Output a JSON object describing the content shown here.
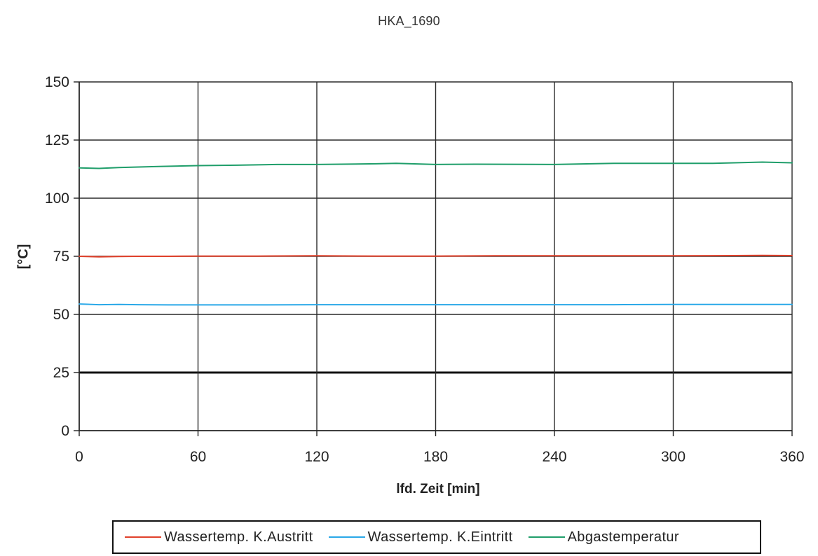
{
  "chart_data": {
    "type": "line",
    "title": "HKA_1690",
    "xlabel": "lfd. Zeit [min]",
    "ylabel": "[°C]",
    "xlim": [
      0,
      360
    ],
    "ylim": [
      0,
      150
    ],
    "x_ticks": [
      0,
      60,
      120,
      180,
      240,
      300,
      360
    ],
    "y_ticks": [
      0,
      25,
      50,
      75,
      100,
      125,
      150
    ],
    "grid": true,
    "legend": "bottom",
    "series": [
      {
        "name": "Wassertemp. K.Austritt",
        "color": "#e0402a",
        "x": [
          0,
          10,
          20,
          30,
          45,
          60,
          90,
          120,
          150,
          180,
          210,
          240,
          270,
          300,
          330,
          345,
          360
        ],
        "y": [
          75.0,
          74.8,
          74.9,
          75.0,
          75.0,
          75.1,
          75.1,
          75.2,
          75.1,
          75.1,
          75.2,
          75.2,
          75.2,
          75.2,
          75.3,
          75.4,
          75.3
        ]
      },
      {
        "name": "Wassertemp. K.Eintritt",
        "color": "#29a8e8",
        "x": [
          0,
          10,
          20,
          30,
          45,
          60,
          90,
          120,
          150,
          180,
          210,
          240,
          270,
          300,
          330,
          360
        ],
        "y": [
          54.5,
          54.2,
          54.3,
          54.2,
          54.1,
          54.1,
          54.1,
          54.2,
          54.2,
          54.2,
          54.2,
          54.2,
          54.2,
          54.3,
          54.3,
          54.3
        ]
      },
      {
        "name": "Abgastemperatur",
        "color": "#1f9e6a",
        "x": [
          0,
          10,
          20,
          40,
          60,
          80,
          100,
          120,
          150,
          160,
          180,
          200,
          240,
          270,
          300,
          320,
          345,
          360
        ],
        "y": [
          113.0,
          112.8,
          113.2,
          113.6,
          114.0,
          114.2,
          114.5,
          114.5,
          114.8,
          115.0,
          114.5,
          114.6,
          114.5,
          115.0,
          115.0,
          115.0,
          115.5,
          115.2
        ]
      }
    ]
  }
}
